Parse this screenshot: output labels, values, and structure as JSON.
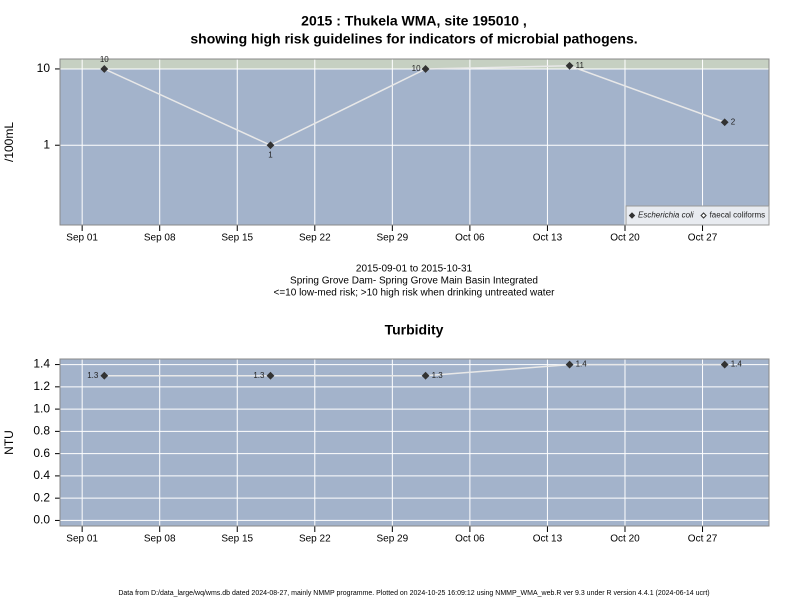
{
  "chart_data": [
    {
      "type": "line",
      "log_y": true,
      "title": [
        "2015 : Thukela WMA, site 195010 ,",
        "showing high risk guidelines for indicators of microbial pathogens."
      ],
      "y_label": "/100mL",
      "notes": [
        "2015-09-01 to 2015-10-31",
        "Spring Grove Dam- Spring Grove Main Basin Integrated",
        "<=10 low-med risk; >10 high risk when drinking untreated water"
      ],
      "x": [
        "2015-09-03",
        "2015-09-18",
        "2015-10-02",
        "2015-10-15",
        "2015-10-29"
      ],
      "series": [
        {
          "name": "Escherichia coli",
          "color": "#333333",
          "marker": "filled",
          "values": [
            10,
            1,
            10,
            11,
            2
          ]
        },
        {
          "name": "faecal coliforms",
          "color": "#333333",
          "marker": "open",
          "values": [
            null,
            null,
            null,
            null,
            null
          ]
        }
      ],
      "high_risk_threshold": 10,
      "band_color": "#c6d0c2",
      "background": "#a3b3cb",
      "line_color": "#e8e8e8",
      "xlim": [
        "2015-08-30",
        "2015-11-02"
      ],
      "xticks": [
        {
          "value": "2015-09-01",
          "label": "Sep 01"
        },
        {
          "value": "2015-09-08",
          "label": "Sep 08"
        },
        {
          "value": "2015-09-15",
          "label": "Sep 15"
        },
        {
          "value": "2015-09-22",
          "label": "Sep 22"
        },
        {
          "value": "2015-09-29",
          "label": "Sep 29"
        },
        {
          "value": "2015-10-06",
          "label": "Oct 06"
        },
        {
          "value": "2015-10-13",
          "label": "Oct 13"
        },
        {
          "value": "2015-10-20",
          "label": "Oct 20"
        },
        {
          "value": "2015-10-27",
          "label": "Oct 27"
        }
      ],
      "ylim": [
        0.09,
        13.5
      ],
      "yticks": [
        1,
        10
      ],
      "grid": true,
      "legend": "lower right"
    },
    {
      "type": "line",
      "log_y": false,
      "title": [
        "Turbidity"
      ],
      "y_label": "NTU",
      "x": [
        "2015-09-03",
        "2015-09-18",
        "2015-10-02",
        "2015-10-15",
        "2015-10-29"
      ],
      "series": [
        {
          "color": "#333333",
          "marker": "filled",
          "values": [
            1.3,
            1.3,
            1.3,
            1.4,
            1.4
          ]
        }
      ],
      "background": "#a3b3cb",
      "line_color": "#e8e8e8",
      "xlim": [
        "2015-08-30",
        "2015-11-02"
      ],
      "xticks": [
        {
          "value": "2015-09-01",
          "label": "Sep 01"
        },
        {
          "value": "2015-09-08",
          "label": "Sep 08"
        },
        {
          "value": "2015-09-15",
          "label": "Sep 15"
        },
        {
          "value": "2015-09-22",
          "label": "Sep 22"
        },
        {
          "value": "2015-09-29",
          "label": "Sep 29"
        },
        {
          "value": "2015-10-06",
          "label": "Oct 06"
        },
        {
          "value": "2015-10-13",
          "label": "Oct 13"
        },
        {
          "value": "2015-10-20",
          "label": "Oct 20"
        },
        {
          "value": "2015-10-27",
          "label": "Oct 27"
        }
      ],
      "ylim": [
        -0.05,
        1.45
      ],
      "yticks": [
        {
          "value": 0,
          "label": "0.0"
        },
        0.2,
        0.4,
        0.6,
        0.8,
        {
          "value": 1,
          "label": "1.0"
        },
        1.2,
        1.4
      ],
      "grid": true
    }
  ],
  "footer": "Data from D:/data_large/wq/wms.db dated 2024-08-27, mainly NMMP programme. Plotted on 2024-10-25 16:09:12 using NMMP_WMA_web.R ver 9.3 under R version 4.4.1 (2024-06-14 ucrt)"
}
